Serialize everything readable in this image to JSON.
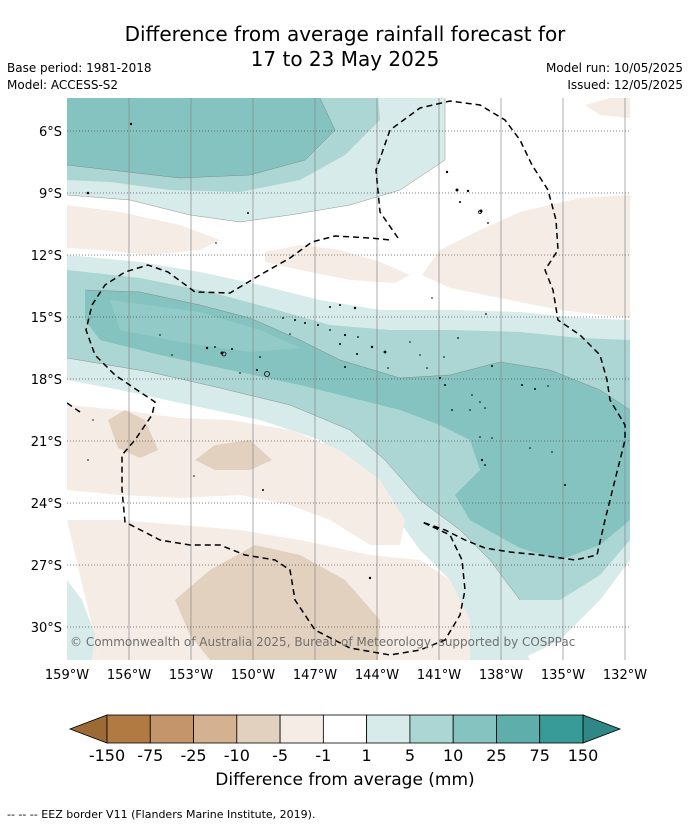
{
  "title_line1": "Difference from average rainfall forecast for",
  "title_line2": "17 to 23 May 2025",
  "base_period": "Base period: 1981-2018",
  "model": "Model: ACCESS-S2",
  "model_run": "Model run: 10/05/2025",
  "issued": "Issued: 12/05/2025",
  "lat_labels": [
    "6°S",
    "9°S",
    "12°S",
    "15°S",
    "18°S",
    "21°S",
    "24°S",
    "27°S",
    "30°S"
  ],
  "lon_labels": [
    "159°W",
    "156°W",
    "153°W",
    "150°W",
    "147°W",
    "144°W",
    "141°W",
    "138°W",
    "135°W",
    "132°W"
  ],
  "copyright": "© Commonwealth of Australia 2025, Bureau of Meteorology, supported by COSPPac",
  "colorbar": {
    "ticks": [
      "-150",
      "-75",
      "-25",
      "-10",
      "-5",
      "-1",
      "1",
      "5",
      "10",
      "25",
      "75",
      "150"
    ],
    "colors": [
      "#b07a42",
      "#c4956a",
      "#d3b191",
      "#e3d1bf",
      "#f5ece6",
      "#ffffff",
      "#d6ebea",
      "#abd6d3",
      "#84c3c0",
      "#5eafac",
      "#389b98"
    ],
    "under_color": "#9b6a35",
    "over_color": "#2f8886",
    "label": "Difference from average (mm)"
  },
  "footnote": "-- -- -- EEZ border V11 (Flanders Marine Institute, 2019).",
  "legend_colors": {
    "dry1": "#f5ece6",
    "dry2": "#e3d1bf",
    "wet1": "#d6ebea",
    "wet2": "#abd6d3",
    "wet3": "#84c3c0"
  }
}
